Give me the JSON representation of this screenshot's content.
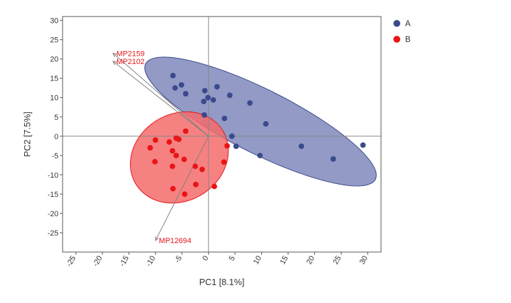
{
  "chart_data": {
    "type": "scatter",
    "title": "",
    "xlabel": "PC1 [8.1%]",
    "ylabel": "PC2 [7.5%]",
    "xlim": [
      -27.5,
      32.5
    ],
    "ylim": [
      -30,
      31
    ],
    "x_ticks": [
      -25,
      -20,
      -15,
      -10,
      -5,
      0,
      5,
      10,
      15,
      20,
      25,
      30
    ],
    "y_ticks": [
      30,
      25,
      20,
      15,
      10,
      5,
      0,
      -5,
      -10,
      -15,
      -20,
      -25
    ],
    "grid": false,
    "zero_lines": true,
    "legend_position": "top-right outside",
    "series": [
      {
        "name": "A",
        "color": "#3a4a8c",
        "ellipse_fill": "#7f88bb",
        "ellipse": {
          "center": [
            9.8,
            3.8
          ],
          "semi_major": 26.4,
          "semi_minor": 7.6,
          "rotation_deg": -36
        },
        "points": [
          [
            -6.7,
            15.7
          ],
          [
            -6.3,
            12.5
          ],
          [
            -5.1,
            13.3
          ],
          [
            -4.3,
            11.0
          ],
          [
            -0.7,
            11.8
          ],
          [
            1.6,
            12.8
          ],
          [
            -0.9,
            9.0
          ],
          [
            -0.1,
            10.0
          ],
          [
            0.9,
            9.4
          ],
          [
            4.0,
            10.6
          ],
          [
            7.8,
            8.6
          ],
          [
            -0.8,
            5.5
          ],
          [
            3.0,
            4.6
          ],
          [
            4.4,
            0.0
          ],
          [
            10.8,
            3.2
          ],
          [
            5.2,
            -2.6
          ],
          [
            9.7,
            -5.0
          ],
          [
            17.5,
            -2.6
          ],
          [
            23.5,
            -5.9
          ],
          [
            29.1,
            -2.3
          ]
        ]
      },
      {
        "name": "B",
        "color": "#e81416",
        "ellipse_fill": "#f46b6b",
        "ellipse": {
          "center": [
            -5.5,
            -5.5
          ],
          "semi_major": 12.0,
          "semi_minor": 9.0,
          "rotation_deg": 75
        },
        "points": [
          [
            -4.3,
            1.3
          ],
          [
            -7.4,
            -1.5
          ],
          [
            -6.1,
            -0.5
          ],
          [
            -5.6,
            -0.8
          ],
          [
            -10.0,
            -1.0
          ],
          [
            -11.0,
            -3.0
          ],
          [
            -6.8,
            -3.8
          ],
          [
            -6.1,
            -5.0
          ],
          [
            -4.6,
            -6.0
          ],
          [
            -10.1,
            -6.6
          ],
          [
            -6.8,
            -7.8
          ],
          [
            -2.5,
            -7.8
          ],
          [
            -1.2,
            -8.6
          ],
          [
            3.5,
            -2.5
          ],
          [
            2.9,
            -6.7
          ],
          [
            -2.4,
            -12.5
          ],
          [
            1.1,
            -13.0
          ],
          [
            -6.7,
            -13.6
          ],
          [
            -4.5,
            -15.0
          ]
        ]
      }
    ],
    "loadings": [
      {
        "label": "MP2159",
        "x": -18.0,
        "y": 21.5
      },
      {
        "label": "MP2102",
        "x": -18.0,
        "y": 19.4
      },
      {
        "label": "MP12694",
        "x": -10.0,
        "y": -27.0
      }
    ],
    "loading_arrow_color": "#808080",
    "loading_label_color": "#e81416"
  }
}
